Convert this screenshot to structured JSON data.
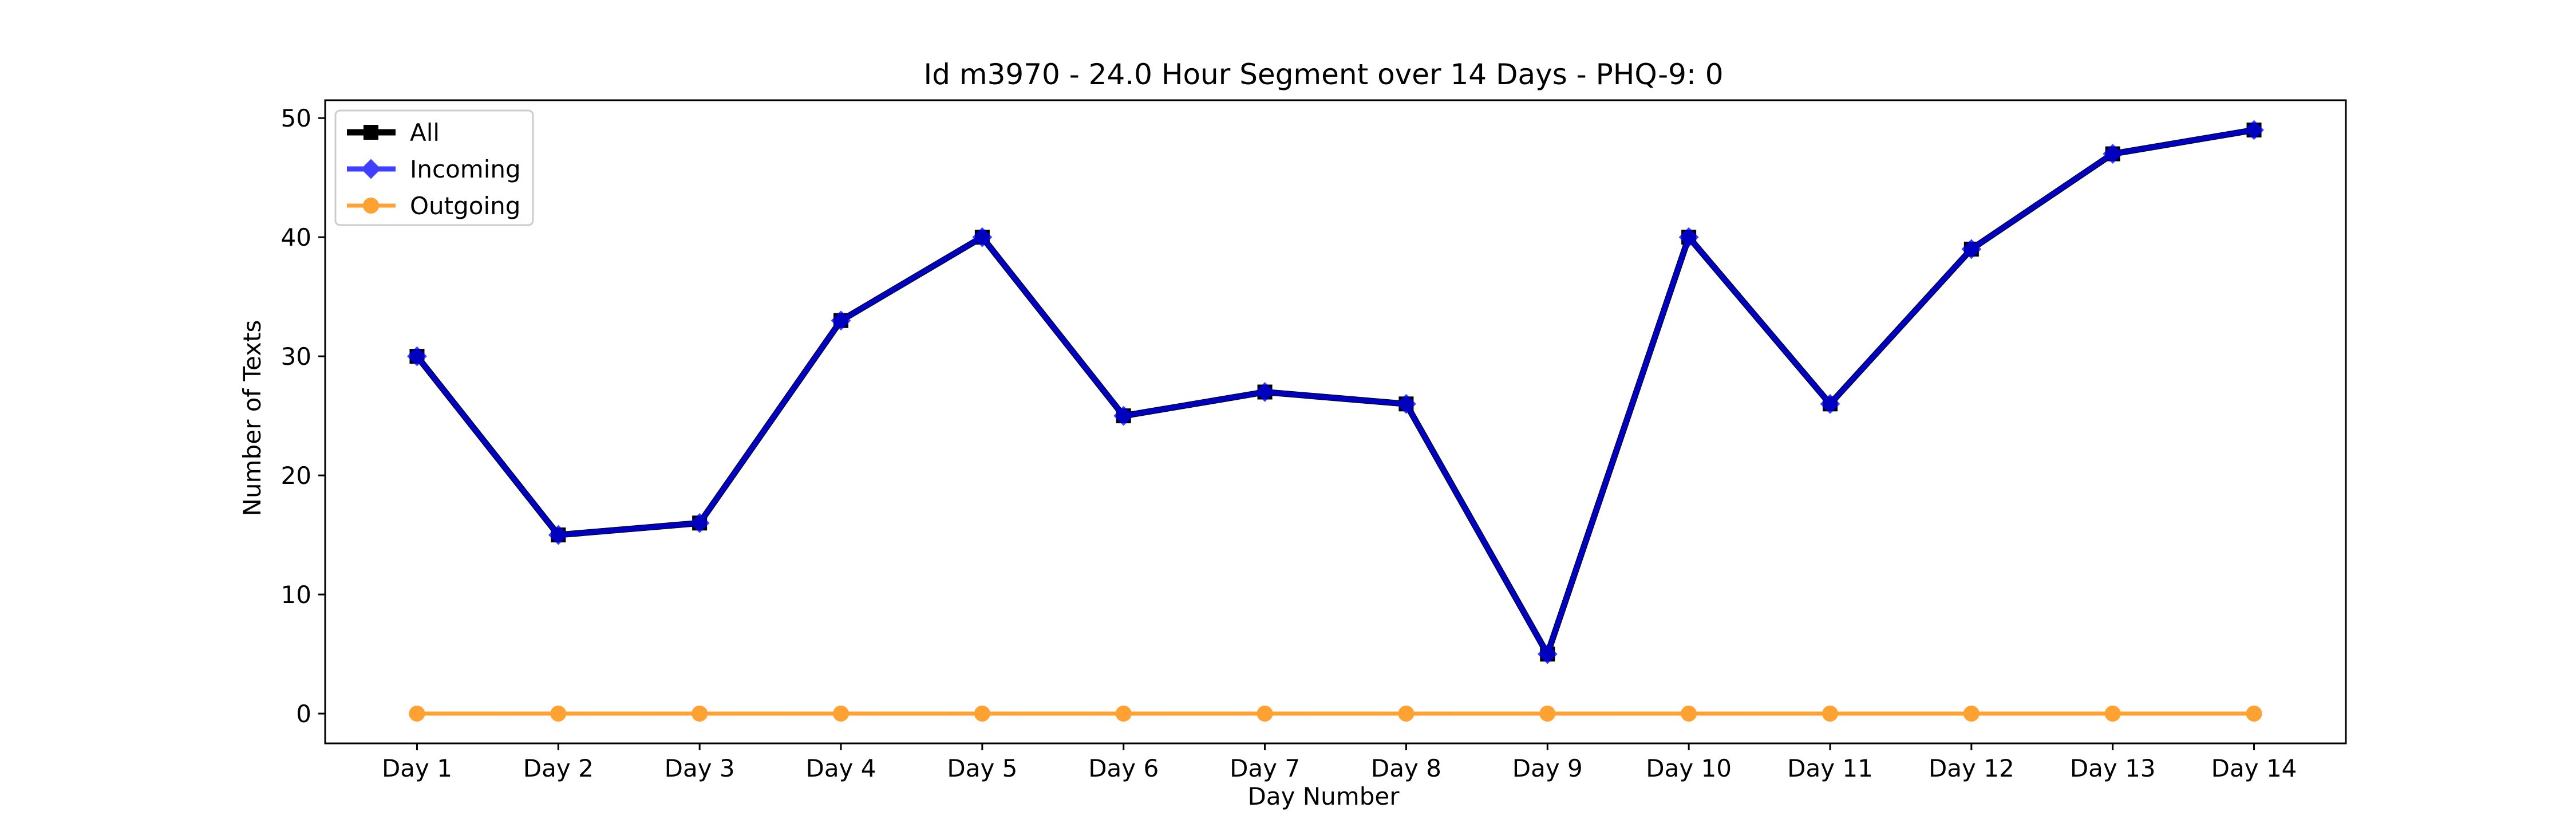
{
  "chart_data": {
    "type": "line",
    "title": "Id m3970 - 24.0 Hour Segment over 14 Days - PHQ-9: 0",
    "xlabel": "Day Number",
    "ylabel": "Number of Texts",
    "categories": [
      "Day 1",
      "Day 2",
      "Day 3",
      "Day 4",
      "Day 5",
      "Day 6",
      "Day 7",
      "Day 8",
      "Day 9",
      "Day 10",
      "Day 11",
      "Day 12",
      "Day 13",
      "Day 14"
    ],
    "yticks": [
      0,
      10,
      20,
      30,
      40,
      50
    ],
    "ylim": [
      -2.5,
      51.5
    ],
    "grid": false,
    "legend_position": "top-left",
    "series": [
      {
        "name": "All",
        "color": "#000000",
        "marker": "square",
        "values": [
          30,
          15,
          16,
          33,
          40,
          25,
          27,
          26,
          5,
          40,
          26,
          39,
          47,
          49
        ]
      },
      {
        "name": "Incoming",
        "color": "#0000ff",
        "marker": "diamond",
        "values": [
          30,
          15,
          16,
          33,
          40,
          25,
          27,
          26,
          5,
          40,
          26,
          39,
          47,
          49
        ]
      },
      {
        "name": "Outgoing",
        "color": "#ff8c00",
        "marker": "circle",
        "values": [
          0,
          0,
          0,
          0,
          0,
          0,
          0,
          0,
          0,
          0,
          0,
          0,
          0,
          0
        ]
      }
    ]
  }
}
